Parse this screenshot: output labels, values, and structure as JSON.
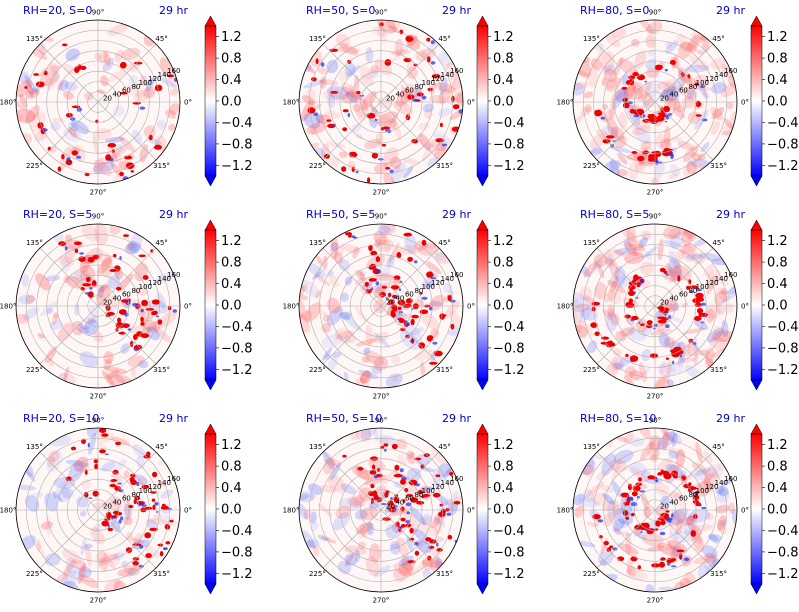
{
  "chart_data": [
    {
      "type": "heatmap",
      "title_left": "RH=20, S=0",
      "title_right": "29 hr",
      "rh": 20,
      "s": 0,
      "angle_ticks": [
        "90°",
        "45°",
        "0°",
        "315°",
        "270°",
        "225°",
        "180°",
        "135°"
      ],
      "radial_ticks": [
        "20",
        "40",
        "60",
        "80",
        "100",
        "120",
        "140",
        "160"
      ],
      "colorbar": {
        "ticks": [
          "1.2",
          "0.8",
          "0.4",
          "0.0",
          "−0.4",
          "−0.8",
          "−1.2"
        ],
        "min": -1.4,
        "max": 1.4,
        "extend": "both",
        "cmap": "bwr"
      }
    },
    {
      "type": "heatmap",
      "title_left": "RH=50, S=0",
      "title_right": "29 hr",
      "rh": 50,
      "s": 0,
      "angle_ticks": [
        "90°",
        "45°",
        "0°",
        "315°",
        "270°",
        "225°",
        "180°",
        "135°"
      ],
      "radial_ticks": [
        "20",
        "40",
        "60",
        "80",
        "100",
        "120",
        "140",
        "160"
      ],
      "colorbar": {
        "ticks": [
          "1.2",
          "0.8",
          "0.4",
          "0.0",
          "−0.4",
          "−0.8",
          "−1.2"
        ],
        "min": -1.4,
        "max": 1.4,
        "extend": "both",
        "cmap": "bwr"
      }
    },
    {
      "type": "heatmap",
      "title_left": "RH=80, S=0",
      "title_right": "29 hr",
      "rh": 80,
      "s": 0,
      "angle_ticks": [
        "90°",
        "45°",
        "0°",
        "315°",
        "270°",
        "225°",
        "180°",
        "135°"
      ],
      "radial_ticks": [
        "20",
        "40",
        "60",
        "80",
        "100",
        "120",
        "140",
        "160"
      ],
      "colorbar": {
        "ticks": [
          "1.2",
          "0.8",
          "0.4",
          "0.0",
          "−0.4",
          "−0.8",
          "−1.2"
        ],
        "min": -1.4,
        "max": 1.4,
        "extend": "both",
        "cmap": "bwr"
      }
    },
    {
      "type": "heatmap",
      "title_left": "RH=20, S=5",
      "title_right": "29 hr",
      "rh": 20,
      "s": 5,
      "angle_ticks": [
        "90°",
        "45°",
        "0°",
        "315°",
        "270°",
        "225°",
        "180°",
        "135°"
      ],
      "radial_ticks": [
        "20",
        "40",
        "60",
        "80",
        "100",
        "120",
        "140",
        "160"
      ],
      "colorbar": {
        "ticks": [
          "1.2",
          "0.8",
          "0.4",
          "0.0",
          "−0.4",
          "−0.8",
          "−1.2"
        ],
        "min": -1.4,
        "max": 1.4,
        "extend": "both",
        "cmap": "bwr"
      }
    },
    {
      "type": "heatmap",
      "title_left": "RH=50, S=5",
      "title_right": "29 hr",
      "rh": 50,
      "s": 5,
      "angle_ticks": [
        "90°",
        "45°",
        "0°",
        "315°",
        "270°",
        "225°",
        "180°",
        "135°"
      ],
      "radial_ticks": [
        "20",
        "40",
        "60",
        "80",
        "100",
        "120",
        "140",
        "160"
      ],
      "colorbar": {
        "ticks": [
          "1.2",
          "0.8",
          "0.4",
          "0.0",
          "−0.4",
          "−0.8",
          "−1.2"
        ],
        "min": -1.4,
        "max": 1.4,
        "extend": "both",
        "cmap": "bwr"
      }
    },
    {
      "type": "heatmap",
      "title_left": "RH=80, S=5",
      "title_right": "29 hr",
      "rh": 80,
      "s": 5,
      "angle_ticks": [
        "90°",
        "45°",
        "0°",
        "315°",
        "270°",
        "225°",
        "180°",
        "135°"
      ],
      "radial_ticks": [
        "20",
        "40",
        "60",
        "80",
        "100",
        "120",
        "140",
        "160"
      ],
      "colorbar": {
        "ticks": [
          "1.2",
          "0.8",
          "0.4",
          "0.0",
          "−0.4",
          "−0.8",
          "−1.2"
        ],
        "min": -1.4,
        "max": 1.4,
        "extend": "both",
        "cmap": "bwr"
      }
    },
    {
      "type": "heatmap",
      "title_left": "RH=20, S=10",
      "title_right": "29 hr",
      "rh": 20,
      "s": 10,
      "angle_ticks": [
        "90°",
        "45°",
        "0°",
        "315°",
        "270°",
        "225°",
        "180°",
        "135°"
      ],
      "radial_ticks": [
        "20",
        "40",
        "60",
        "80",
        "100",
        "120",
        "140",
        "160"
      ],
      "colorbar": {
        "ticks": [
          "1.2",
          "0.8",
          "0.4",
          "0.0",
          "−0.4",
          "−0.8",
          "−1.2"
        ],
        "min": -1.4,
        "max": 1.4,
        "extend": "both",
        "cmap": "bwr"
      }
    },
    {
      "type": "heatmap",
      "title_left": "RH=50, S=10",
      "title_right": "29 hr",
      "rh": 50,
      "s": 10,
      "angle_ticks": [
        "90°",
        "45°",
        "0°",
        "315°",
        "270°",
        "225°",
        "180°",
        "135°"
      ],
      "radial_ticks": [
        "20",
        "40",
        "60",
        "80",
        "100",
        "120",
        "140",
        "160"
      ],
      "colorbar": {
        "ticks": [
          "1.2",
          "0.8",
          "0.4",
          "0.0",
          "−0.4",
          "−0.8",
          "−1.2"
        ],
        "min": -1.4,
        "max": 1.4,
        "extend": "both",
        "cmap": "bwr"
      }
    },
    {
      "type": "heatmap",
      "title_left": "RH=80, S=10",
      "title_right": "29 hr",
      "rh": 80,
      "s": 10,
      "angle_ticks": [
        "90°",
        "45°",
        "0°",
        "315°",
        "270°",
        "225°",
        "180°",
        "135°"
      ],
      "radial_ticks": [
        "20",
        "40",
        "60",
        "80",
        "100",
        "120",
        "140",
        "160"
      ],
      "colorbar": {
        "ticks": [
          "1.2",
          "0.8",
          "0.4",
          "0.0",
          "−0.4",
          "−0.8",
          "−1.2"
        ],
        "min": -1.4,
        "max": 1.4,
        "extend": "both",
        "cmap": "bwr"
      }
    }
  ],
  "colors": {
    "title": "#0000cc",
    "positive": "#ff0000",
    "negative": "#0000ff",
    "neutral": "#ffffff"
  }
}
